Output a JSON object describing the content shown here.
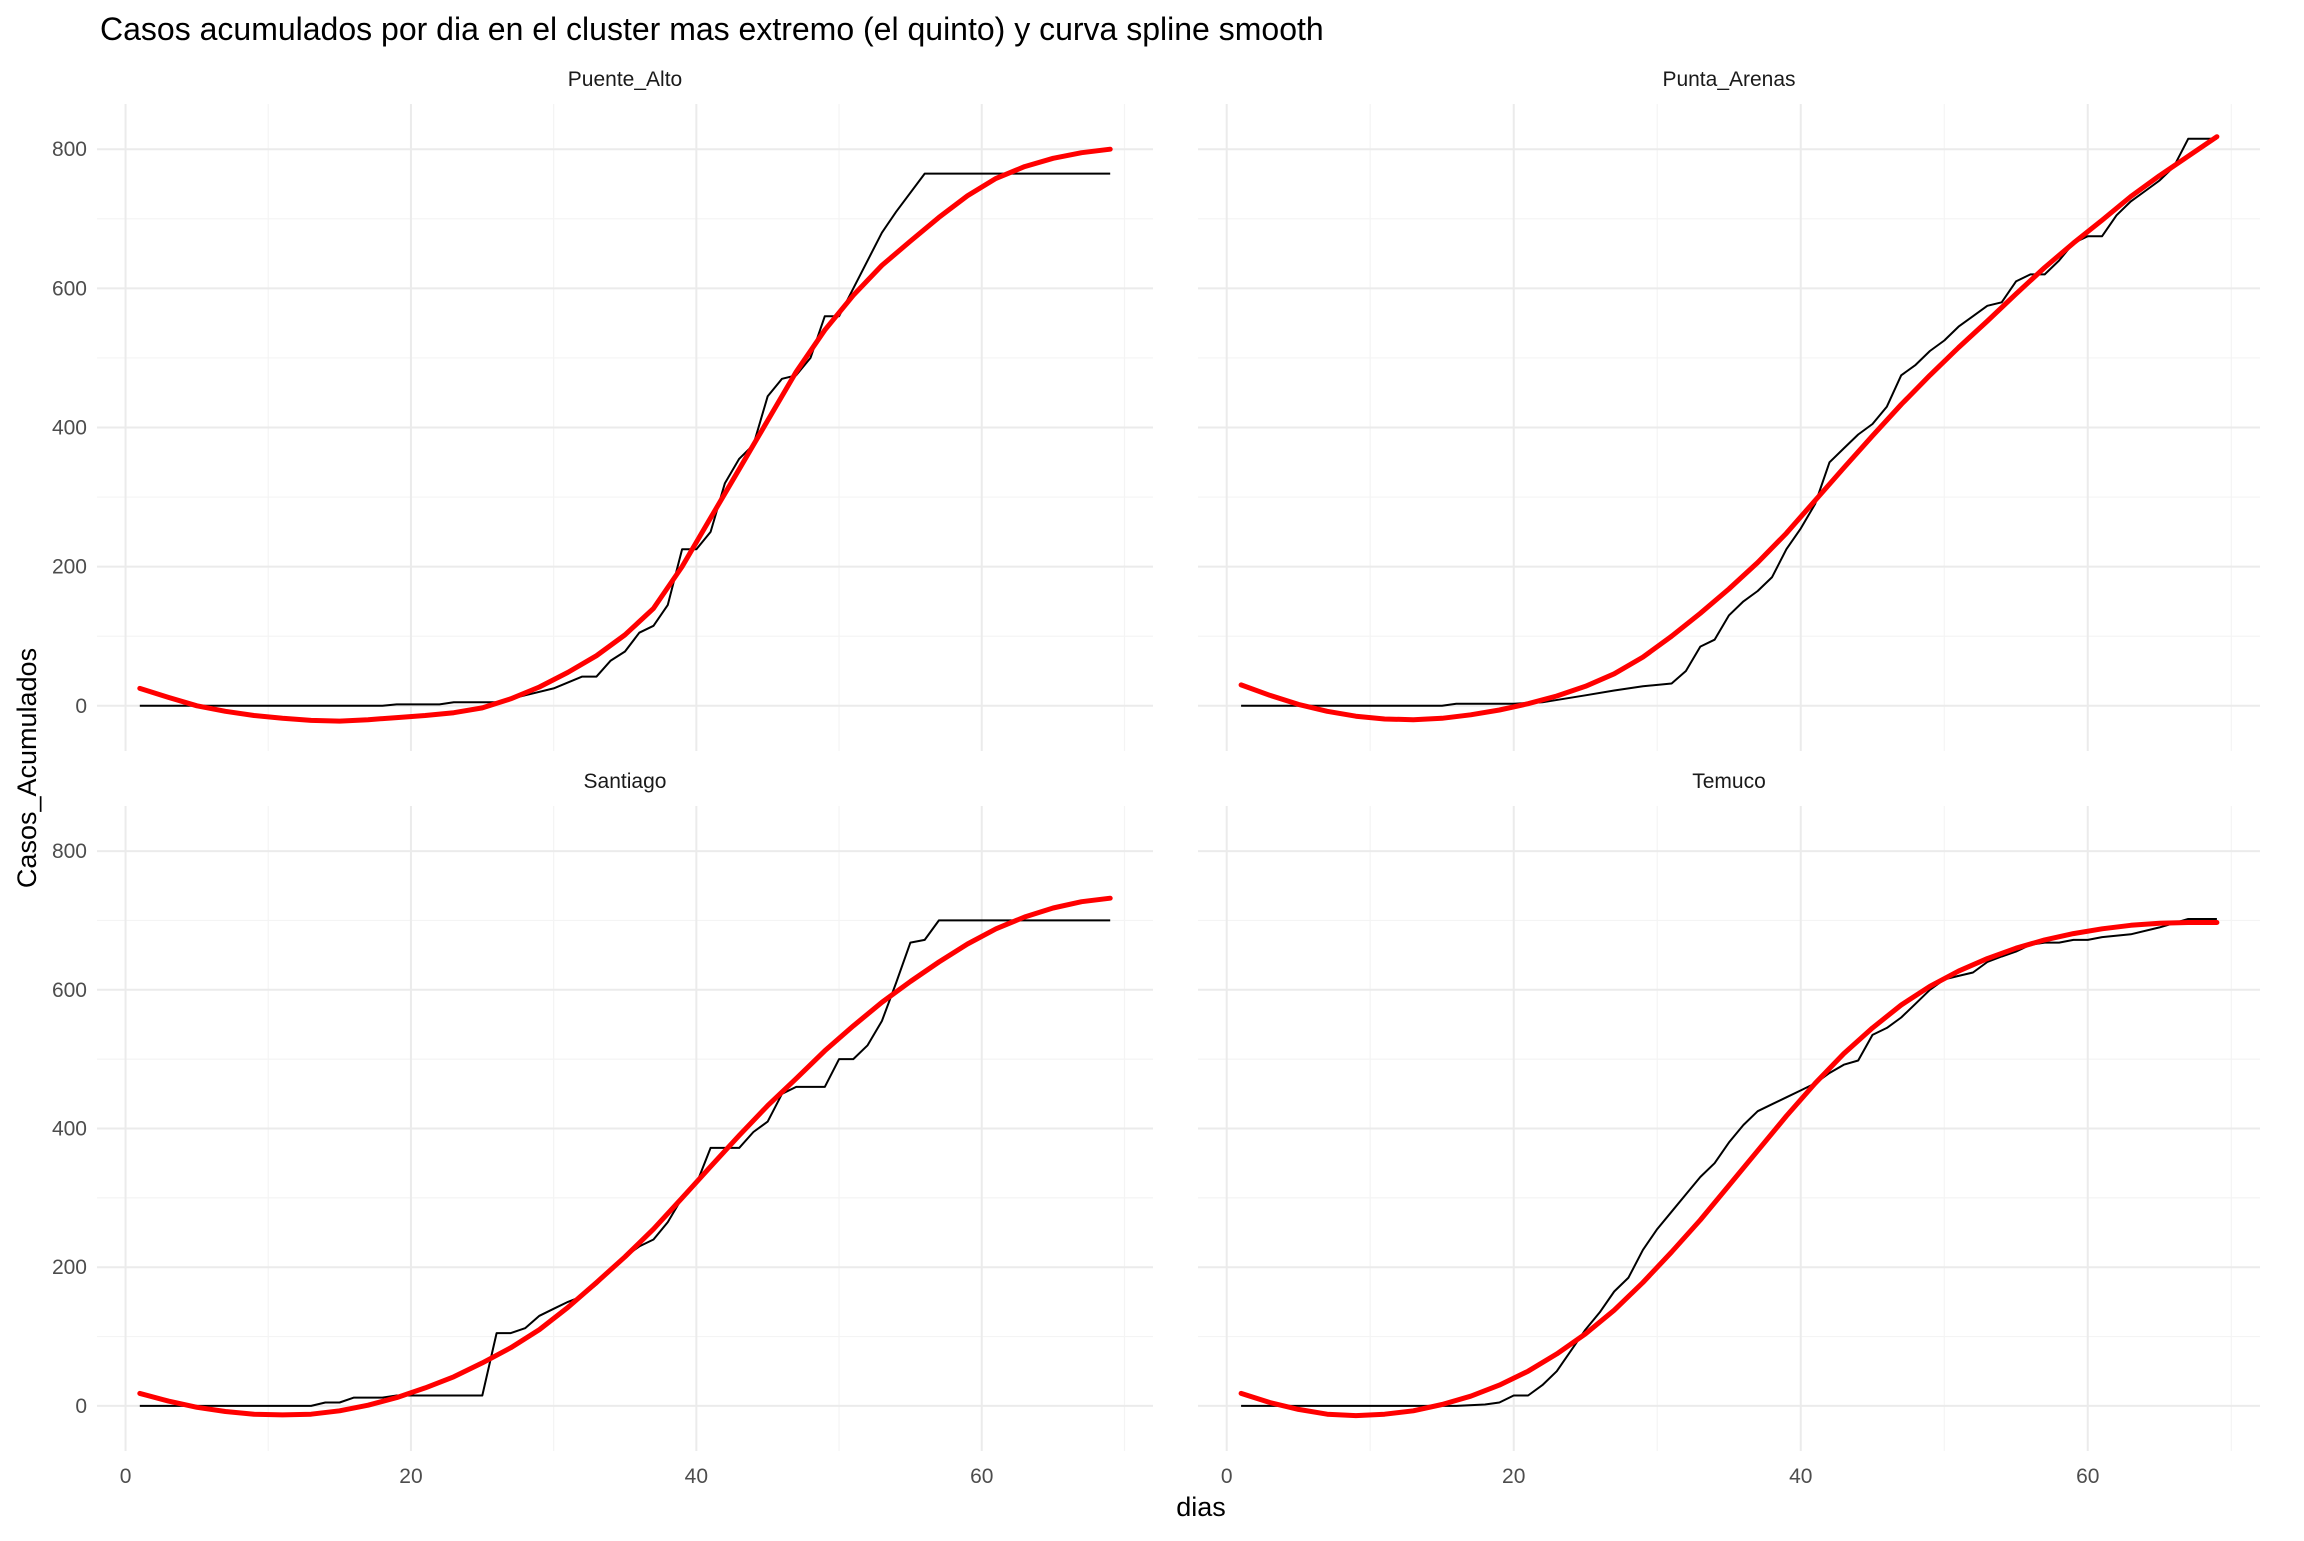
{
  "chart_data": {
    "type": "line",
    "title": "Casos acumulados por dia en el cluster mas extremo (el quinto) y curva spline smooth",
    "xlabel": "dias",
    "ylabel": "Casos_Acumulados",
    "xlim": [
      -2,
      72
    ],
    "ylim": [
      -65,
      865
    ],
    "x_ticks": [
      "0",
      "20",
      "40",
      "60"
    ],
    "y_ticks": [
      "0",
      "200",
      "400",
      "600",
      "800"
    ],
    "grid": true,
    "colors": {
      "observed": "#000000",
      "smooth": "#ff0000",
      "grid": "#ebebeb"
    },
    "facets": [
      {
        "name": "Puente_Alto",
        "observed": [
          [
            1,
            0
          ],
          [
            5,
            0
          ],
          [
            10,
            0
          ],
          [
            15,
            0
          ],
          [
            18,
            0
          ],
          [
            19,
            2
          ],
          [
            22,
            2
          ],
          [
            23,
            5
          ],
          [
            26,
            5
          ],
          [
            28,
            15
          ],
          [
            30,
            25
          ],
          [
            32,
            42
          ],
          [
            33,
            42
          ],
          [
            34,
            65
          ],
          [
            35,
            78
          ],
          [
            36,
            105
          ],
          [
            37,
            115
          ],
          [
            38,
            145
          ],
          [
            39,
            225
          ],
          [
            40,
            225
          ],
          [
            41,
            250
          ],
          [
            42,
            320
          ],
          [
            43,
            355
          ],
          [
            44,
            375
          ],
          [
            45,
            445
          ],
          [
            46,
            470
          ],
          [
            47,
            475
          ],
          [
            48,
            500
          ],
          [
            49,
            560
          ],
          [
            50,
            560
          ],
          [
            51,
            600
          ],
          [
            53,
            680
          ],
          [
            54,
            710
          ],
          [
            56,
            765
          ],
          [
            58,
            765
          ],
          [
            60,
            765
          ],
          [
            64,
            765
          ],
          [
            69,
            765
          ]
        ],
        "smooth": [
          [
            1,
            25
          ],
          [
            3,
            12
          ],
          [
            5,
            0
          ],
          [
            7,
            -8
          ],
          [
            9,
            -14
          ],
          [
            11,
            -18
          ],
          [
            13,
            -21
          ],
          [
            15,
            -22
          ],
          [
            17,
            -20
          ],
          [
            19,
            -17
          ],
          [
            21,
            -14
          ],
          [
            23,
            -10
          ],
          [
            25,
            -3
          ],
          [
            27,
            10
          ],
          [
            29,
            27
          ],
          [
            31,
            48
          ],
          [
            33,
            72
          ],
          [
            35,
            102
          ],
          [
            37,
            140
          ],
          [
            39,
            200
          ],
          [
            41,
            270
          ],
          [
            43,
            340
          ],
          [
            45,
            410
          ],
          [
            47,
            480
          ],
          [
            49,
            540
          ],
          [
            51,
            590
          ],
          [
            53,
            633
          ],
          [
            55,
            668
          ],
          [
            57,
            702
          ],
          [
            59,
            733
          ],
          [
            61,
            758
          ],
          [
            63,
            775
          ],
          [
            65,
            787
          ],
          [
            67,
            795
          ],
          [
            69,
            800
          ]
        ]
      },
      {
        "name": "Punta_Arenas",
        "observed": [
          [
            1,
            0
          ],
          [
            5,
            0
          ],
          [
            10,
            0
          ],
          [
            15,
            0
          ],
          [
            16,
            3
          ],
          [
            20,
            3
          ],
          [
            22,
            5
          ],
          [
            25,
            15
          ],
          [
            27,
            22
          ],
          [
            29,
            28
          ],
          [
            31,
            32
          ],
          [
            32,
            50
          ],
          [
            33,
            85
          ],
          [
            34,
            95
          ],
          [
            35,
            130
          ],
          [
            36,
            150
          ],
          [
            37,
            165
          ],
          [
            38,
            185
          ],
          [
            39,
            225
          ],
          [
            40,
            255
          ],
          [
            41,
            290
          ],
          [
            42,
            350
          ],
          [
            43,
            370
          ],
          [
            44,
            390
          ],
          [
            45,
            405
          ],
          [
            46,
            430
          ],
          [
            47,
            475
          ],
          [
            48,
            490
          ],
          [
            49,
            510
          ],
          [
            50,
            525
          ],
          [
            51,
            545
          ],
          [
            52,
            560
          ],
          [
            53,
            575
          ],
          [
            54,
            580
          ],
          [
            55,
            610
          ],
          [
            56,
            620
          ],
          [
            57,
            620
          ],
          [
            58,
            640
          ],
          [
            59,
            665
          ],
          [
            60,
            675
          ],
          [
            61,
            675
          ],
          [
            62,
            705
          ],
          [
            63,
            725
          ],
          [
            64,
            740
          ],
          [
            65,
            755
          ],
          [
            66,
            775
          ],
          [
            67,
            815
          ],
          [
            68,
            815
          ],
          [
            69,
            815
          ]
        ],
        "smooth": [
          [
            1,
            30
          ],
          [
            3,
            15
          ],
          [
            5,
            2
          ],
          [
            7,
            -8
          ],
          [
            9,
            -15
          ],
          [
            11,
            -19
          ],
          [
            13,
            -20
          ],
          [
            15,
            -18
          ],
          [
            17,
            -13
          ],
          [
            19,
            -6
          ],
          [
            21,
            3
          ],
          [
            23,
            14
          ],
          [
            25,
            28
          ],
          [
            27,
            46
          ],
          [
            29,
            70
          ],
          [
            31,
            100
          ],
          [
            33,
            133
          ],
          [
            35,
            168
          ],
          [
            37,
            206
          ],
          [
            39,
            248
          ],
          [
            41,
            295
          ],
          [
            43,
            342
          ],
          [
            45,
            388
          ],
          [
            47,
            433
          ],
          [
            49,
            475
          ],
          [
            51,
            515
          ],
          [
            53,
            553
          ],
          [
            55,
            592
          ],
          [
            57,
            630
          ],
          [
            59,
            665
          ],
          [
            61,
            698
          ],
          [
            63,
            732
          ],
          [
            65,
            762
          ],
          [
            67,
            790
          ],
          [
            69,
            818
          ]
        ]
      },
      {
        "name": "Santiago",
        "observed": [
          [
            1,
            0
          ],
          [
            5,
            0
          ],
          [
            10,
            0
          ],
          [
            13,
            0
          ],
          [
            14,
            5
          ],
          [
            15,
            5
          ],
          [
            16,
            12
          ],
          [
            18,
            12
          ],
          [
            19,
            15
          ],
          [
            22,
            15
          ],
          [
            25,
            15
          ],
          [
            26,
            105
          ],
          [
            27,
            105
          ],
          [
            28,
            112
          ],
          [
            29,
            130
          ],
          [
            30,
            140
          ],
          [
            31,
            150
          ],
          [
            32,
            158
          ],
          [
            33,
            175
          ],
          [
            34,
            195
          ],
          [
            35,
            215
          ],
          [
            36,
            230
          ],
          [
            37,
            240
          ],
          [
            38,
            265
          ],
          [
            39,
            300
          ],
          [
            40,
            320
          ],
          [
            41,
            372
          ],
          [
            42,
            372
          ],
          [
            43,
            372
          ],
          [
            44,
            395
          ],
          [
            45,
            410
          ],
          [
            46,
            450
          ],
          [
            47,
            460
          ],
          [
            48,
            460
          ],
          [
            49,
            460
          ],
          [
            50,
            500
          ],
          [
            51,
            500
          ],
          [
            52,
            520
          ],
          [
            53,
            555
          ],
          [
            54,
            610
          ],
          [
            55,
            668
          ],
          [
            56,
            672
          ],
          [
            57,
            700
          ],
          [
            60,
            700
          ],
          [
            65,
            700
          ],
          [
            69,
            700
          ]
        ],
        "smooth": [
          [
            1,
            18
          ],
          [
            3,
            7
          ],
          [
            5,
            -2
          ],
          [
            7,
            -8
          ],
          [
            9,
            -12
          ],
          [
            11,
            -13
          ],
          [
            13,
            -12
          ],
          [
            15,
            -7
          ],
          [
            17,
            1
          ],
          [
            19,
            12
          ],
          [
            21,
            26
          ],
          [
            23,
            42
          ],
          [
            25,
            62
          ],
          [
            27,
            84
          ],
          [
            29,
            110
          ],
          [
            31,
            142
          ],
          [
            33,
            178
          ],
          [
            35,
            215
          ],
          [
            37,
            255
          ],
          [
            39,
            300
          ],
          [
            41,
            345
          ],
          [
            43,
            390
          ],
          [
            45,
            433
          ],
          [
            47,
            472
          ],
          [
            49,
            512
          ],
          [
            51,
            548
          ],
          [
            53,
            582
          ],
          [
            55,
            612
          ],
          [
            57,
            640
          ],
          [
            59,
            666
          ],
          [
            61,
            688
          ],
          [
            63,
            705
          ],
          [
            65,
            718
          ],
          [
            67,
            727
          ],
          [
            69,
            732
          ]
        ]
      },
      {
        "name": "Temuco",
        "observed": [
          [
            1,
            0
          ],
          [
            5,
            0
          ],
          [
            10,
            0
          ],
          [
            15,
            0
          ],
          [
            16,
            0
          ],
          [
            18,
            2
          ],
          [
            19,
            5
          ],
          [
            20,
            15
          ],
          [
            21,
            15
          ],
          [
            22,
            30
          ],
          [
            23,
            50
          ],
          [
            24,
            80
          ],
          [
            25,
            110
          ],
          [
            26,
            135
          ],
          [
            27,
            165
          ],
          [
            28,
            185
          ],
          [
            29,
            225
          ],
          [
            30,
            255
          ],
          [
            31,
            280
          ],
          [
            32,
            305
          ],
          [
            33,
            330
          ],
          [
            34,
            350
          ],
          [
            35,
            380
          ],
          [
            36,
            405
          ],
          [
            37,
            425
          ],
          [
            38,
            435
          ],
          [
            39,
            445
          ],
          [
            40,
            455
          ],
          [
            41,
            465
          ],
          [
            42,
            480
          ],
          [
            43,
            492
          ],
          [
            44,
            498
          ],
          [
            45,
            535
          ],
          [
            46,
            545
          ],
          [
            47,
            560
          ],
          [
            48,
            580
          ],
          [
            49,
            600
          ],
          [
            50,
            615
          ],
          [
            51,
            620
          ],
          [
            52,
            625
          ],
          [
            53,
            640
          ],
          [
            54,
            648
          ],
          [
            55,
            655
          ],
          [
            56,
            665
          ],
          [
            57,
            668
          ],
          [
            58,
            668
          ],
          [
            59,
            672
          ],
          [
            60,
            672
          ],
          [
            61,
            676
          ],
          [
            63,
            680
          ],
          [
            65,
            690
          ],
          [
            67,
            702
          ],
          [
            69,
            702
          ]
        ],
        "smooth": [
          [
            1,
            18
          ],
          [
            3,
            5
          ],
          [
            5,
            -5
          ],
          [
            7,
            -12
          ],
          [
            9,
            -14
          ],
          [
            11,
            -12
          ],
          [
            13,
            -7
          ],
          [
            15,
            2
          ],
          [
            17,
            14
          ],
          [
            19,
            30
          ],
          [
            21,
            50
          ],
          [
            23,
            75
          ],
          [
            25,
            104
          ],
          [
            27,
            138
          ],
          [
            29,
            178
          ],
          [
            31,
            222
          ],
          [
            33,
            268
          ],
          [
            35,
            318
          ],
          [
            37,
            368
          ],
          [
            39,
            418
          ],
          [
            41,
            465
          ],
          [
            43,
            508
          ],
          [
            45,
            545
          ],
          [
            47,
            578
          ],
          [
            49,
            605
          ],
          [
            51,
            627
          ],
          [
            53,
            645
          ],
          [
            55,
            660
          ],
          [
            57,
            672
          ],
          [
            59,
            681
          ],
          [
            61,
            688
          ],
          [
            63,
            693
          ],
          [
            65,
            696
          ],
          [
            67,
            697
          ],
          [
            69,
            697
          ]
        ]
      }
    ]
  }
}
